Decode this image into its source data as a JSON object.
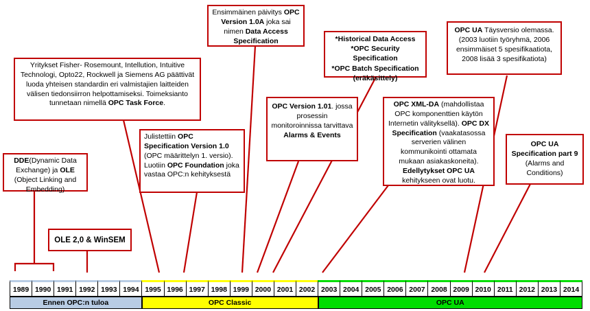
{
  "colors": {
    "accent_red": "#c00000",
    "era_before": "#b8cce4",
    "era_classic": "#ffff00",
    "era_ua": "#00dd00"
  },
  "boxes": {
    "dde": {
      "p1": "DDE",
      "p2": "(Dynamic Data Exchange) ja ",
      "p3": "OLE",
      "p4": " (Object Linking and Embedding)"
    },
    "ole2": {
      "p1": "OLE 2,0 & WinSEM"
    },
    "taskforce": {
      "p1": "Yritykset Fisher- Rosemount, Intellution, Intuitive Technologi, Opto22, Rockwell ja Siemens AG päättivät luoda yhteisen standardin eri valmistajien laitteiden välisen tiedonsiirron helpottamiseksi. Toimeksianto tunnetaan nimellä ",
      "p2": "OPC Task Force",
      "p3": "."
    },
    "spec10": {
      "p1": "Julistettiin ",
      "p2": "OPC Specification Version 1.0",
      "p3": " (OPC määrittelyn 1. versio).",
      "p4": "Luotiin ",
      "p5": "OPC Foundation",
      "p6": " joka vastaa OPC:n kehityksestä"
    },
    "v10a": {
      "p1": "Ensimmäinen päivitys ",
      "p2": "OPC Version 1.0A",
      "p3": " joka sai nimen ",
      "p4": "Data Access Specification"
    },
    "v101": {
      "p1": "OPC Version 1.01",
      "p2": ". jossa prosessin monitoroinnissa tarvittava ",
      "p3": "Alarms & Events"
    },
    "hist": {
      "l1": "*Historical Data Access",
      "l2": "*OPC Security Specification",
      "l3": "*OPC Batch Specification",
      "l4": "(eräkäsittely)"
    },
    "xmlda": {
      "p1": "OPC XML-DA",
      "p2": " (mahdollistaa OPC komponenttien käytön Internetin välityksellä). ",
      "p3": "OPC DX Specification",
      "p4": " (vaakatasossa serverien välinen kommunikointi ottamata mukaan asiakaskoneita). ",
      "p5": "Edellytykset OPC UA",
      "p6": " kehitykseen ovat luotu."
    },
    "ua_full": {
      "p1": "OPC UA",
      "p2": " Täysversio olemassa. (2003 luotiin työryhmä, 2006 ensimmäiset 5 spesifikaatiota, 2008 lisää 3 spesifikatiota)"
    },
    "part9": {
      "p1": "OPC UA Specification part 9",
      "p2": " (Alarms and Conditions)"
    }
  },
  "timeline": {
    "years": [
      "1989",
      "1990",
      "1991",
      "1992",
      "1993",
      "1994",
      "1995",
      "1996",
      "1997",
      "1998",
      "1999",
      "2000",
      "2001",
      "2002",
      "2003",
      "2004",
      "2005",
      "2006",
      "2007",
      "2008",
      "2009",
      "2010",
      "2011",
      "2012",
      "2013",
      "2014"
    ],
    "eras": [
      {
        "label": "Ennen OPC:n tuloa",
        "span": 6,
        "color": "#b8cce4"
      },
      {
        "label": "OPC Classic",
        "span": 8,
        "color": "#ffff00"
      },
      {
        "label": "OPC UA",
        "span": 12,
        "color": "#00dd00"
      }
    ]
  }
}
